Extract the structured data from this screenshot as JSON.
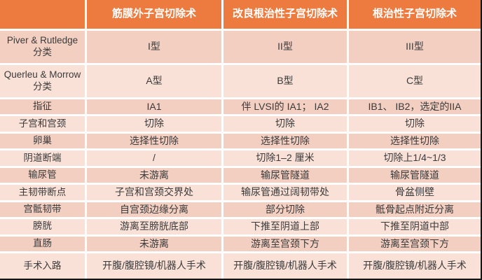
{
  "table": {
    "header": {
      "corner": "",
      "columns": [
        "筋膜外子宫切除术",
        "改良根治性子宫切除术",
        "根治性子宫切除术"
      ]
    },
    "rows": [
      {
        "label": "Piver & Rutledge 分类",
        "cells": [
          "I型",
          "II型",
          "III型"
        ]
      },
      {
        "label": "Querleu & Morrow分类",
        "cells": [
          "A型",
          "B型",
          "C型"
        ]
      },
      {
        "label": "指征",
        "cells": [
          "IA1",
          "伴 LVSI的 IA1； IA2",
          "IB1、 IB2，选定的IIA"
        ]
      },
      {
        "label": "子宫和宫颈",
        "cells": [
          "切除",
          "切除",
          "切除"
        ]
      },
      {
        "label": "卵巢",
        "cells": [
          "选择性切除",
          "选择性切除",
          "选择性切除"
        ]
      },
      {
        "label": "阴道断端",
        "cells": [
          "/",
          "切除1–2 厘米",
          "切除上1/4~1/3"
        ]
      },
      {
        "label": "输尿管",
        "cells": [
          "未游离",
          "输尿管隧道",
          "输尿管隧道"
        ]
      },
      {
        "label": "主韧带断点",
        "cells": [
          "子宫和宫颈交界处",
          "输尿管通过阔韧带处",
          "骨盆侧壁"
        ]
      },
      {
        "label": "宫骶韧带",
        "cells": [
          "自宫颈边缘分离",
          "部分切除",
          "骶骨起点附近分离"
        ]
      },
      {
        "label": "膀胱",
        "cells": [
          "游离至膀胱底部",
          "下推至阴道上部",
          "下推至阴道中部"
        ]
      },
      {
        "label": "直肠",
        "cells": [
          "未游离",
          "游离至宫颈下方",
          "游离至宫颈下方"
        ]
      },
      {
        "label": "手术入路",
        "cells": [
          "开腹/腹腔镜/机器人手术",
          "开腹/腹腔镜/机器人手术",
          "开腹/腹腔镜/机器人手术"
        ]
      }
    ],
    "colors": {
      "header_bg": "#ED7A3E",
      "header_text": "#FFFFFF",
      "row_dark": "#F3CFC2",
      "row_light": "#F9E1D8",
      "body_text": "#3A3A3A",
      "gap": "#FFFFFF",
      "edge_border": "#151515"
    }
  }
}
